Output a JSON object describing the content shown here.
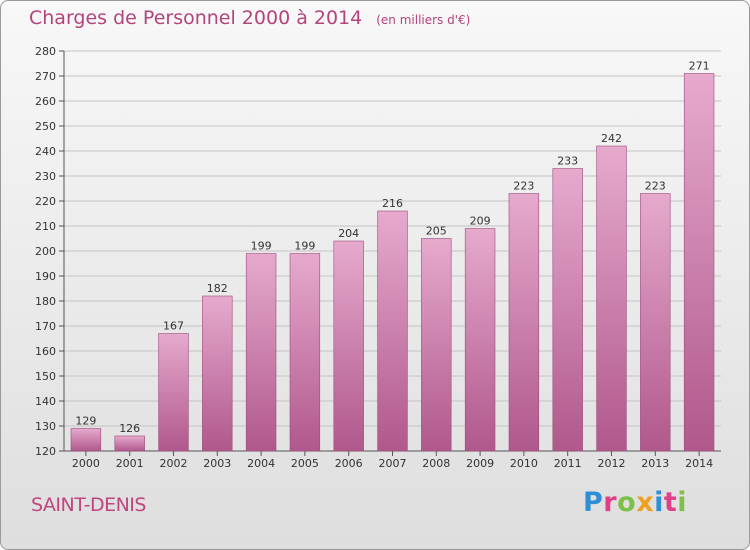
{
  "title": "Charges de Personnel 2000 à 2014",
  "unit_note": "(en milliers d'€)",
  "commune": "SAINT-DENIS",
  "logo": "Proxiti",
  "colors": {
    "title": "#b3447c",
    "bar_light": "#e6aacd",
    "bar_dark": "#b0588c",
    "logo_letters": [
      "#2f8fd6",
      "#e0408a",
      "#7cc04a",
      "#f0a020",
      "#2f8fd6",
      "#e0408a",
      "#7cc04a"
    ]
  },
  "chart_data": {
    "type": "bar",
    "title": "Charges de Personnel 2000 à 2014",
    "subtitle": "(en milliers d'€)",
    "categories": [
      "2000",
      "2001",
      "2002",
      "2003",
      "2004",
      "2005",
      "2006",
      "2007",
      "2008",
      "2009",
      "2010",
      "2011",
      "2012",
      "2013",
      "2014"
    ],
    "values": [
      129,
      126,
      167,
      182,
      199,
      199,
      204,
      216,
      205,
      209,
      223,
      233,
      242,
      223,
      271
    ],
    "ylim": [
      120,
      280
    ],
    "yticks": [
      120,
      130,
      140,
      150,
      160,
      170,
      180,
      190,
      200,
      210,
      220,
      230,
      240,
      250,
      260,
      270,
      280
    ],
    "grid": true,
    "xlabel": "",
    "ylabel": ""
  }
}
